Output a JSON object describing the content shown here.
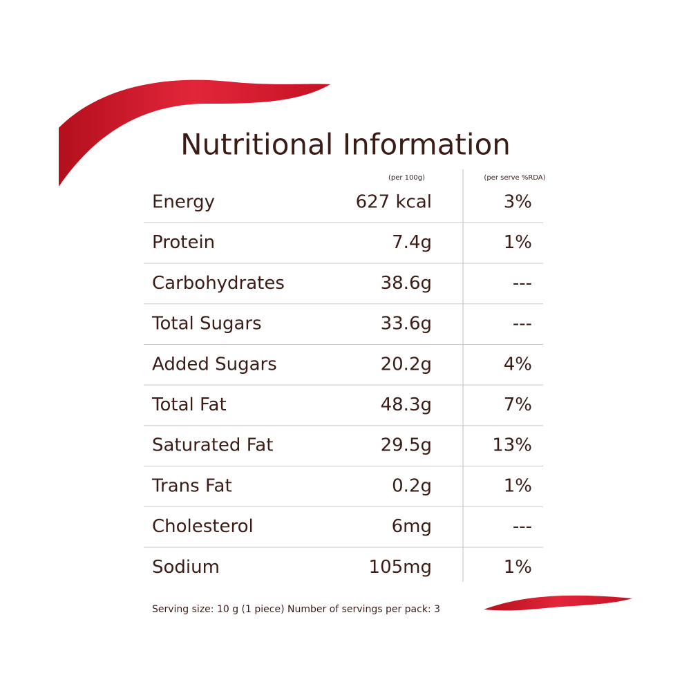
{
  "header": {
    "title": "Nutritional Information"
  },
  "table": {
    "columns": [
      "(per 100g)",
      "(per serve %RDA)"
    ],
    "rows": [
      [
        "Energy",
        "627 kcal",
        "3%"
      ],
      [
        "Protein",
        "7.4g",
        "1%"
      ],
      [
        "Carbohydrates",
        "38.6g",
        "---"
      ],
      [
        "Total Sugars",
        "33.6g",
        "---"
      ],
      [
        "Added Sugars",
        "20.2g",
        "4%"
      ],
      [
        "Total Fat",
        "48.3g",
        "7%"
      ],
      [
        "Saturated Fat",
        "29.5g",
        "13%"
      ],
      [
        "Trans Fat",
        "0.2g",
        "1%"
      ],
      [
        "Cholesterol",
        "6mg",
        "---"
      ],
      [
        "Sodium",
        "105mg",
        "1%"
      ]
    ]
  },
  "footer": {
    "note": "Serving size: 10 g (1 piece) Number of servings per pack: 3"
  }
}
